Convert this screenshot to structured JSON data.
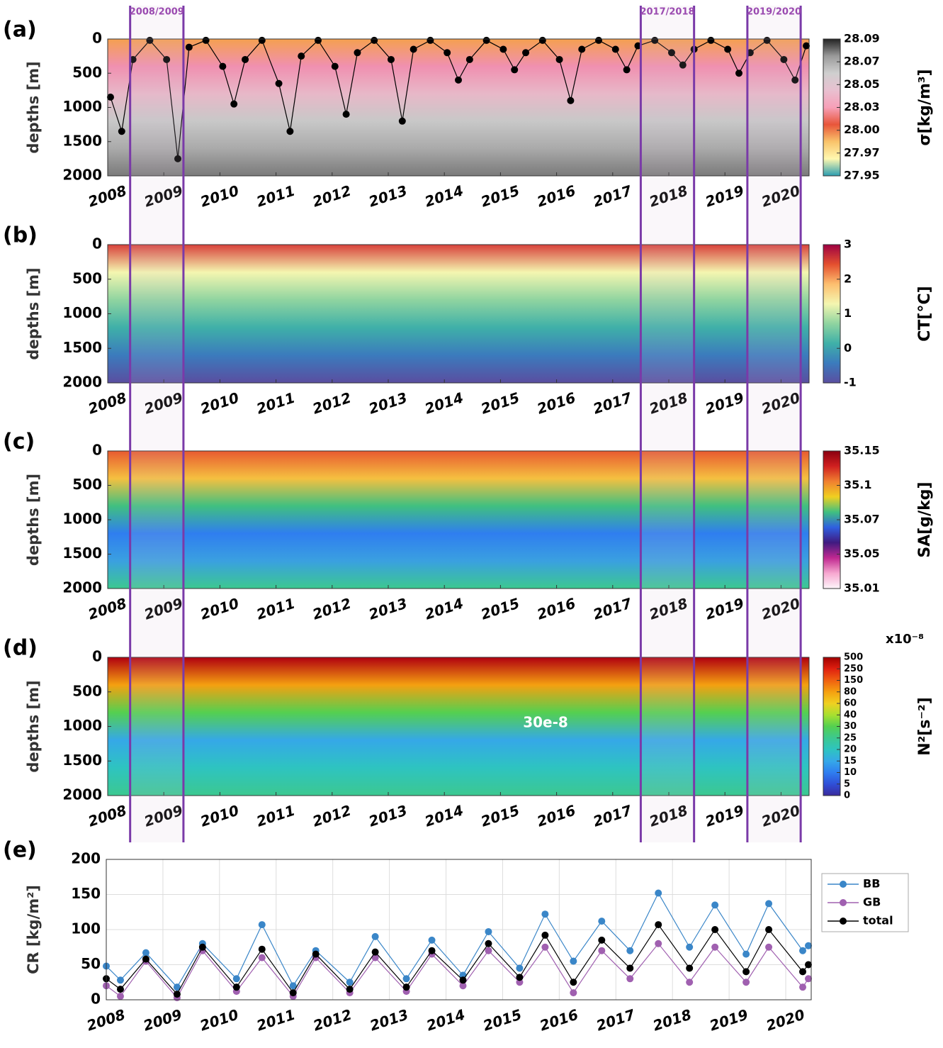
{
  "highlights": [
    {
      "label": "2008/2009",
      "x": [
        2008.4,
        2009.35
      ]
    },
    {
      "label": "2017/2018",
      "x": [
        2017.5,
        2018.45
      ]
    },
    {
      "label": "2019/2020",
      "x": [
        2019.4,
        2020.35
      ]
    }
  ],
  "chart_data": [
    {
      "type": "contour",
      "panel": "(a)",
      "ylabel": "depths [m]",
      "xlim": [
        2008,
        2020.5
      ],
      "xticks": [
        2008,
        2009,
        2010,
        2011,
        2012,
        2013,
        2014,
        2015,
        2016,
        2017,
        2018,
        2019,
        2020
      ],
      "ylim": [
        0,
        2000
      ],
      "y_reversed": true,
      "yticks": [
        0,
        500,
        1000,
        1500,
        2000
      ],
      "field_colors": [
        "#f5a050",
        "#f090b0",
        "#e8b8c8",
        "#c8c8c8",
        "#aaaaaa",
        "#7a7a7a"
      ],
      "colorbar": {
        "label": "σ[kg/m³]",
        "spacing": "index",
        "ticks": [
          27.95,
          27.97,
          {
            "value": 28,
            "label": "28.00"
          },
          28.03,
          28.05,
          28.07,
          28.09
        ],
        "colors": [
          "#2a9db0",
          "#fff8b0",
          "#f9c36a",
          "#e8553a",
          "#f7a0b8",
          "#e8c0d0",
          "#cfcfcf",
          "#9a9a9a",
          "#222222"
        ]
      },
      "mld": {
        "color": "#000000",
        "x": [
          2008.05,
          2008.25,
          2008.45,
          2008.75,
          2009.05,
          2009.25,
          2009.45,
          2009.75,
          2010.05,
          2010.25,
          2010.45,
          2010.75,
          2011.05,
          2011.25,
          2011.45,
          2011.75,
          2012.05,
          2012.25,
          2012.45,
          2012.75,
          2013.05,
          2013.25,
          2013.45,
          2013.75,
          2014.05,
          2014.25,
          2014.45,
          2014.75,
          2015.05,
          2015.25,
          2015.45,
          2015.75,
          2016.05,
          2016.25,
          2016.45,
          2016.75,
          2017.05,
          2017.25,
          2017.45,
          2017.75,
          2018.05,
          2018.25,
          2018.45,
          2018.75,
          2019.05,
          2019.25,
          2019.45,
          2019.75,
          2020.05,
          2020.25,
          2020.45
        ],
        "values": [
          850,
          1350,
          300,
          20,
          300,
          1750,
          120,
          20,
          400,
          950,
          300,
          20,
          650,
          1350,
          250,
          20,
          400,
          1100,
          200,
          20,
          300,
          1200,
          150,
          20,
          200,
          600,
          300,
          20,
          150,
          450,
          200,
          20,
          300,
          900,
          150,
          20,
          150,
          450,
          100,
          20,
          200,
          380,
          150,
          20,
          150,
          500,
          200,
          20,
          300,
          600,
          100
        ]
      }
    },
    {
      "type": "contour",
      "panel": "(b)",
      "ylabel": "depths [m]",
      "xlim": [
        2008,
        2020.5
      ],
      "xticks": [
        2008,
        2009,
        2010,
        2011,
        2012,
        2013,
        2014,
        2015,
        2016,
        2017,
        2018,
        2019,
        2020
      ],
      "ylim": [
        0,
        2000
      ],
      "y_reversed": true,
      "yticks": [
        0,
        500,
        1000,
        1500,
        2000
      ],
      "field_colors": [
        "#d8403a",
        "#f4f6b0",
        "#8fd4a0",
        "#3fb0a8",
        "#3b7bbd",
        "#5a4ea0"
      ],
      "colorbar": {
        "label": "CT[°C]",
        "spacing": "linear",
        "clim": [
          -1,
          3
        ],
        "ticks": [
          -1,
          0,
          1,
          2,
          3
        ],
        "colors": [
          "#5a4ea0",
          "#3b7bbd",
          "#3fb0a8",
          "#8fd4a0",
          "#f4f6b0",
          "#fdbf6f",
          "#e4502f",
          "#9e0142"
        ]
      }
    },
    {
      "type": "contour",
      "panel": "(c)",
      "ylabel": "depths [m]",
      "xlim": [
        2008,
        2020.5
      ],
      "xticks": [
        2008,
        2009,
        2010,
        2011,
        2012,
        2013,
        2014,
        2015,
        2016,
        2017,
        2018,
        2019,
        2020
      ],
      "ylim": [
        0,
        2000
      ],
      "y_reversed": true,
      "yticks": [
        0,
        500,
        1000,
        1500,
        2000
      ],
      "field_colors": [
        "#e85a30",
        "#f5c040",
        "#40c080",
        "#2f7ef0",
        "#3aa0e0",
        "#3cc890"
      ],
      "colorbar": {
        "label": "SA[g/kg]",
        "spacing": "index",
        "ticks": [
          35.01,
          35.05,
          35.07,
          35.1,
          35.15
        ],
        "colors": [
          "#fdf5fa",
          "#f7a8d0",
          "#c02890",
          "#401a80",
          "#2f5fe0",
          "#40c080",
          "#f0d020",
          "#f08030",
          "#d02020",
          "#8a0010"
        ]
      }
    },
    {
      "type": "contour",
      "panel": "(d)",
      "ylabel": "depths [m]",
      "xlim": [
        2008,
        2020.5
      ],
      "xticks": [
        2008,
        2009,
        2010,
        2011,
        2012,
        2013,
        2014,
        2015,
        2016,
        2017,
        2018,
        2019,
        2020
      ],
      "ylim": [
        0,
        2000
      ],
      "y_reversed": true,
      "yticks": [
        0,
        500,
        1000,
        1500,
        2000
      ],
      "field_colors": [
        "#b00010",
        "#f5a010",
        "#54d050",
        "#35a8e8",
        "#2ec4c0",
        "#3cc890"
      ],
      "annotation": "30e-8",
      "colorbar": {
        "label": "N²[s⁻²]",
        "exponent": "x10⁻⁸",
        "spacing": "index",
        "ticks": [
          0,
          5,
          10,
          15,
          20,
          25,
          30,
          40,
          60,
          80,
          150,
          250,
          500
        ],
        "colors": [
          "#3a2a9c",
          "#2f4fd8",
          "#2f7ef0",
          "#35a8e8",
          "#2ec4c0",
          "#3cc890",
          "#54d050",
          "#a8e030",
          "#f0d020",
          "#f5a010",
          "#f06010",
          "#e02010",
          "#a00000"
        ]
      }
    },
    {
      "type": "line",
      "panel": "(e)",
      "ylabel": "CR [kg/m²]",
      "xlim": [
        2008,
        2020.45
      ],
      "xticks": [
        2008,
        2009,
        2010,
        2011,
        2012,
        2013,
        2014,
        2015,
        2016,
        2017,
        2018,
        2019,
        2020
      ],
      "ylim": [
        0,
        200
      ],
      "yticks": [
        0,
        50,
        100,
        150,
        200
      ],
      "grid": true,
      "x": [
        2008.0,
        2008.25,
        2008.7,
        2009.25,
        2009.7,
        2010.3,
        2010.75,
        2011.3,
        2011.7,
        2012.3,
        2012.75,
        2013.3,
        2013.75,
        2014.3,
        2014.75,
        2015.3,
        2015.75,
        2016.25,
        2016.75,
        2017.25,
        2017.75,
        2018.3,
        2018.75,
        2019.3,
        2019.7,
        2020.3,
        2020.4
      ],
      "series": [
        {
          "name": "BB",
          "color": "#3a86c8",
          "values": [
            48,
            28,
            67,
            18,
            80,
            30,
            107,
            20,
            70,
            25,
            90,
            30,
            85,
            35,
            97,
            45,
            122,
            55,
            112,
            70,
            152,
            75,
            135,
            65,
            137,
            70,
            77
          ]
        },
        {
          "name": "GB",
          "color": "#a060b0",
          "values": [
            20,
            5,
            55,
            3,
            70,
            12,
            60,
            5,
            60,
            10,
            60,
            12,
            65,
            20,
            70,
            25,
            75,
            10,
            70,
            30,
            80,
            25,
            75,
            25,
            75,
            18,
            30
          ]
        },
        {
          "name": "total",
          "color": "#000000",
          "values": [
            30,
            15,
            58,
            8,
            75,
            18,
            72,
            10,
            65,
            15,
            68,
            18,
            70,
            28,
            80,
            32,
            92,
            25,
            85,
            45,
            107,
            45,
            100,
            40,
            100,
            40,
            50
          ]
        }
      ]
    }
  ]
}
